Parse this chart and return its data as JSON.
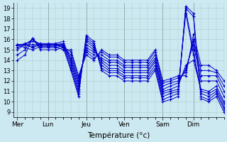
{
  "xlabel": "Température (°c)",
  "bg_color": "#cce8f0",
  "line_color": "#0000cc",
  "marker": "+",
  "grid_color": "#aacccc",
  "grid_minor_color": "#bbdddd",
  "yticks": [
    9,
    10,
    11,
    12,
    13,
    14,
    15,
    16,
    17,
    18,
    19
  ],
  "ylim": [
    8.5,
    19.5
  ],
  "day_labels": [
    "Mer",
    "Lun",
    "Jeu",
    "Ven",
    "Sam",
    "Dim"
  ],
  "day_x": [
    0,
    4,
    9,
    14,
    19,
    23
  ],
  "xlim": [
    -0.5,
    27
  ],
  "series": [
    [
      14.0,
      14.5,
      16.1,
      15.0,
      15.0,
      15.0,
      15.2,
      13.0,
      10.5,
      16.4,
      15.8,
      13.0,
      12.5,
      12.5,
      12.0,
      12.0,
      12.0,
      12.0,
      13.0,
      10.0,
      10.2,
      10.5,
      19.2,
      18.5,
      10.3,
      10.0,
      10.5,
      9.0
    ],
    [
      14.5,
      15.0,
      16.1,
      15.2,
      15.2,
      15.2,
      15.4,
      13.2,
      10.8,
      16.2,
      15.6,
      13.2,
      12.8,
      12.8,
      12.3,
      12.3,
      12.3,
      12.3,
      13.2,
      10.2,
      10.5,
      10.8,
      19.0,
      18.2,
      10.5,
      10.2,
      10.8,
      9.3
    ],
    [
      15.0,
      15.5,
      16.0,
      15.4,
      15.4,
      15.4,
      15.5,
      13.5,
      11.0,
      16.0,
      15.4,
      13.5,
      13.0,
      13.0,
      12.5,
      12.5,
      12.5,
      12.5,
      13.5,
      10.5,
      10.8,
      11.0,
      18.8,
      15.0,
      10.8,
      10.5,
      11.0,
      9.5
    ],
    [
      15.2,
      15.5,
      16.0,
      15.5,
      15.5,
      15.5,
      15.6,
      13.8,
      11.2,
      15.8,
      15.2,
      13.8,
      13.2,
      13.2,
      12.8,
      12.8,
      12.8,
      12.8,
      13.8,
      10.8,
      11.0,
      11.2,
      18.5,
      14.5,
      11.0,
      10.8,
      11.2,
      9.8
    ],
    [
      15.4,
      15.6,
      15.8,
      15.6,
      15.6,
      15.6,
      15.8,
      14.0,
      11.5,
      15.5,
      15.0,
      14.0,
      13.5,
      13.5,
      13.0,
      13.0,
      13.0,
      13.0,
      14.0,
      11.0,
      11.2,
      11.5,
      13.5,
      14.0,
      11.2,
      11.0,
      11.5,
      10.0
    ],
    [
      15.5,
      15.5,
      15.5,
      15.5,
      15.5,
      15.5,
      15.5,
      14.2,
      11.8,
      15.2,
      14.8,
      14.2,
      13.8,
      13.8,
      13.3,
      13.3,
      13.3,
      13.3,
      14.2,
      11.2,
      11.5,
      11.8,
      13.2,
      15.5,
      12.0,
      12.0,
      12.0,
      10.5
    ],
    [
      15.5,
      15.5,
      15.3,
      15.5,
      15.5,
      15.5,
      15.3,
      14.5,
      12.0,
      15.0,
      14.5,
      14.5,
      14.0,
      14.0,
      13.5,
      13.5,
      13.5,
      13.5,
      14.5,
      11.5,
      11.8,
      12.0,
      13.0,
      15.8,
      12.5,
      12.5,
      12.5,
      11.0
    ],
    [
      15.5,
      15.5,
      15.2,
      15.5,
      15.5,
      15.5,
      15.2,
      14.8,
      12.3,
      14.8,
      14.2,
      14.8,
      14.3,
      14.3,
      13.8,
      13.8,
      13.8,
      13.8,
      14.8,
      11.8,
      12.0,
      12.3,
      12.8,
      16.0,
      13.0,
      13.0,
      12.8,
      11.5
    ],
    [
      15.5,
      15.2,
      15.0,
      15.3,
      15.3,
      15.3,
      15.0,
      15.0,
      12.5,
      14.5,
      14.0,
      15.0,
      14.5,
      14.5,
      14.0,
      14.0,
      14.0,
      14.0,
      15.0,
      12.0,
      12.2,
      12.5,
      12.5,
      16.5,
      13.5,
      13.5,
      13.0,
      12.0
    ]
  ]
}
